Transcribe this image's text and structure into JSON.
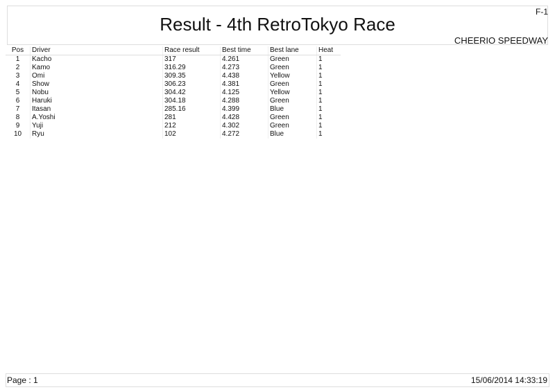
{
  "header": {
    "code": "F-1",
    "title": "Result - 4th RetroTokyo Race",
    "venue": "CHEERIO SPEEDWAY"
  },
  "table": {
    "columns": [
      "Pos",
      "Driver",
      "Race result",
      "Best time",
      "Best lane",
      "Heat"
    ],
    "rows": [
      [
        "1",
        "Kacho",
        "317",
        "4.261",
        "Green",
        "1"
      ],
      [
        "2",
        "Kamo",
        "316.29",
        "4.273",
        "Green",
        "1"
      ],
      [
        "3",
        "Omi",
        "309.35",
        "4.438",
        "Yellow",
        "1"
      ],
      [
        "4",
        "Show",
        "306.23",
        "4.381",
        "Green",
        "1"
      ],
      [
        "5",
        "Nobu",
        "304.42",
        "4.125",
        "Yellow",
        "1"
      ],
      [
        "6",
        "Haruki",
        "304.18",
        "4.288",
        "Green",
        "1"
      ],
      [
        "7",
        "Itasan",
        "285.16",
        "4.399",
        "Blue",
        "1"
      ],
      [
        "8",
        "A.Yoshi",
        "281",
        "4.428",
        "Green",
        "1"
      ],
      [
        "9",
        "Yuji",
        "212",
        "4.302",
        "Green",
        "1"
      ],
      [
        "10",
        "Ryu",
        "102",
        "4.272",
        "Blue",
        "1"
      ]
    ]
  },
  "footer": {
    "page": "Page : 1",
    "datetime": "15/06/2014  14:33:19"
  }
}
